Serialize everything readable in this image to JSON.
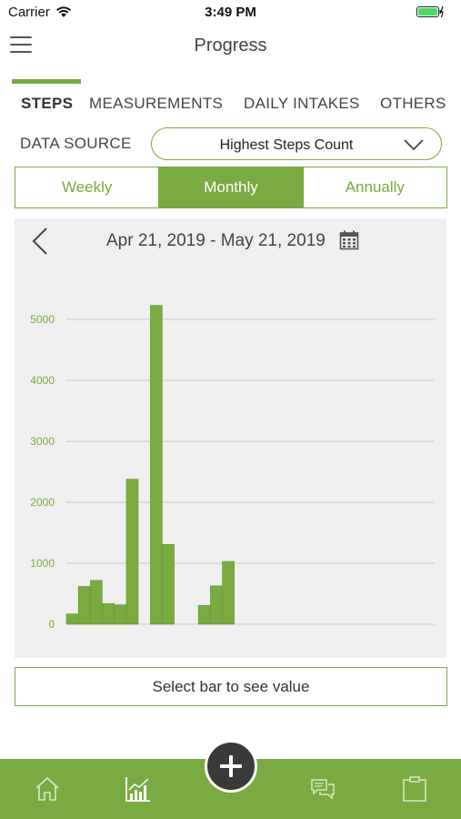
{
  "status_bar": {
    "carrier": "Carrier",
    "time": "3:49 PM"
  },
  "header": {
    "title": "Progress"
  },
  "tabs": [
    {
      "label": "STEPS",
      "active": true
    },
    {
      "label": "MEASUREMENTS",
      "active": false
    },
    {
      "label": "DAILY INTAKES",
      "active": false
    },
    {
      "label": "OTHERS",
      "active": false
    }
  ],
  "data_source": {
    "label": "DATA SOURCE",
    "selected": "Highest Steps Count"
  },
  "period": {
    "options": [
      "Weekly",
      "Monthly",
      "Annually"
    ],
    "selected": "Monthly"
  },
  "date_range": "Apr 21, 2019 - May 21, 2019",
  "select_hint": "Select bar to see value",
  "colors": {
    "accent": "#7aaa42",
    "bar": "#7aaa42",
    "panel": "#efefef",
    "fab": "#3a3a3a"
  },
  "icons": {
    "menu": "hamburger-menu-icon",
    "prev": "chevron-left-icon",
    "calendar": "calendar-icon",
    "home": "home-icon",
    "chart": "bar-chart-icon",
    "add": "plus-icon",
    "chat": "chat-bubbles-icon",
    "clipboard": "clipboard-icon"
  },
  "chart_data": {
    "type": "bar",
    "ylim": [
      0,
      5250
    ],
    "yticks": [
      0,
      1000,
      2000,
      3000,
      4000,
      5000
    ],
    "grid": true,
    "values": [
      170,
      620,
      720,
      340,
      320,
      2380,
      0,
      5230,
      1310,
      0,
      0,
      310,
      630,
      1030
    ]
  }
}
